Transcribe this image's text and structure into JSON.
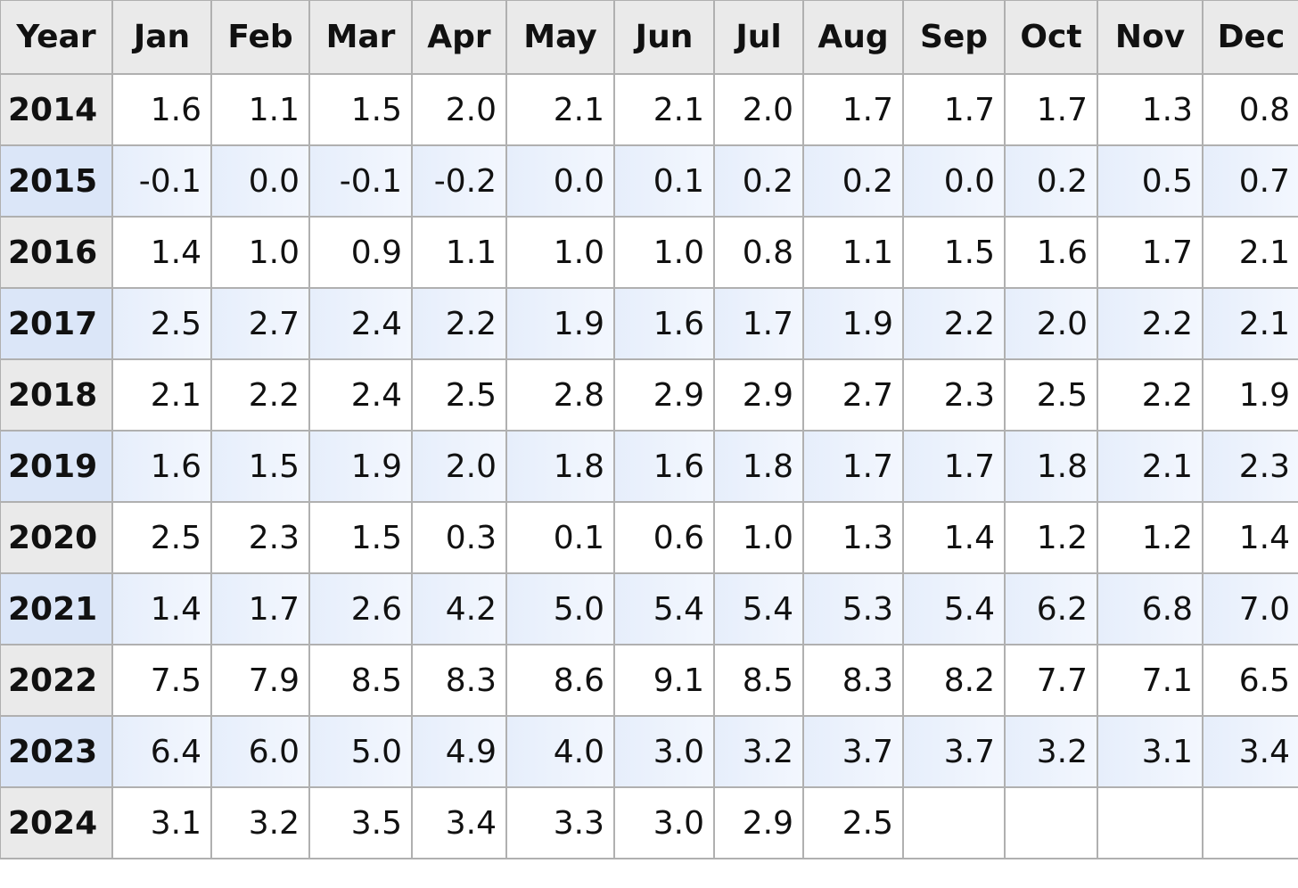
{
  "table": {
    "header": [
      "Year",
      "Jan",
      "Feb",
      "Mar",
      "Apr",
      "May",
      "Jun",
      "Jul",
      "Aug",
      "Sep",
      "Oct",
      "Nov",
      "Dec"
    ],
    "rows": [
      [
        "2014",
        "1.6",
        "1.1",
        "1.5",
        "2.0",
        "2.1",
        "2.1",
        "2.0",
        "1.7",
        "1.7",
        "1.7",
        "1.3",
        "0.8"
      ],
      [
        "2015",
        "-0.1",
        "0.0",
        "-0.1",
        "-0.2",
        "0.0",
        "0.1",
        "0.2",
        "0.2",
        "0.0",
        "0.2",
        "0.5",
        "0.7"
      ],
      [
        "2016",
        "1.4",
        "1.0",
        "0.9",
        "1.1",
        "1.0",
        "1.0",
        "0.8",
        "1.1",
        "1.5",
        "1.6",
        "1.7",
        "2.1"
      ],
      [
        "2017",
        "2.5",
        "2.7",
        "2.4",
        "2.2",
        "1.9",
        "1.6",
        "1.7",
        "1.9",
        "2.2",
        "2.0",
        "2.2",
        "2.1"
      ],
      [
        "2018",
        "2.1",
        "2.2",
        "2.4",
        "2.5",
        "2.8",
        "2.9",
        "2.9",
        "2.7",
        "2.3",
        "2.5",
        "2.2",
        "1.9"
      ],
      [
        "2019",
        "1.6",
        "1.5",
        "1.9",
        "2.0",
        "1.8",
        "1.6",
        "1.8",
        "1.7",
        "1.7",
        "1.8",
        "2.1",
        "2.3"
      ],
      [
        "2020",
        "2.5",
        "2.3",
        "1.5",
        "0.3",
        "0.1",
        "0.6",
        "1.0",
        "1.3",
        "1.4",
        "1.2",
        "1.2",
        "1.4"
      ],
      [
        "2021",
        "1.4",
        "1.7",
        "2.6",
        "4.2",
        "5.0",
        "5.4",
        "5.4",
        "5.3",
        "5.4",
        "6.2",
        "6.8",
        "7.0"
      ],
      [
        "2022",
        "7.5",
        "7.9",
        "8.5",
        "8.3",
        "8.6",
        "9.1",
        "8.5",
        "8.3",
        "8.2",
        "7.7",
        "7.1",
        "6.5"
      ],
      [
        "2023",
        "6.4",
        "6.0",
        "5.0",
        "4.9",
        "4.0",
        "3.0",
        "3.2",
        "3.7",
        "3.7",
        "3.2",
        "3.1",
        "3.4"
      ],
      [
        "2024",
        "3.1",
        "3.2",
        "3.5",
        "3.4",
        "3.3",
        "3.0",
        "2.9",
        "2.5"
      ]
    ]
  }
}
